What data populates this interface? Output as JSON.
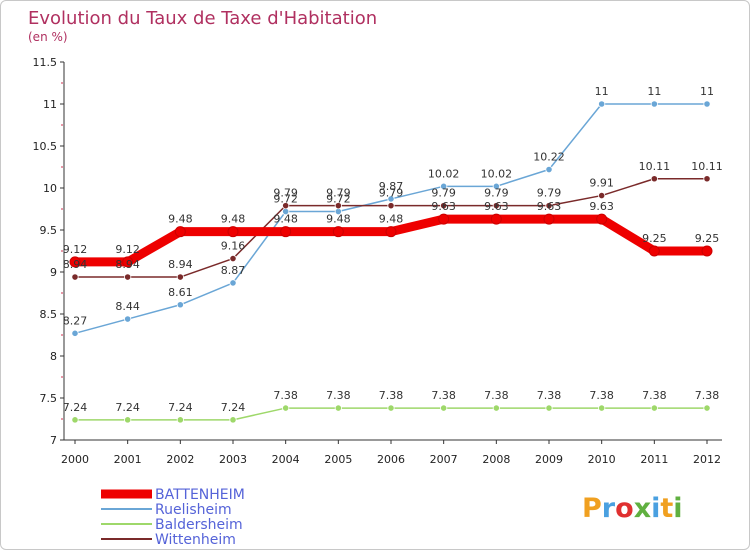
{
  "chart_data": {
    "type": "line",
    "title": "Evolution du Taux de Taxe d'Habitation",
    "subtitle": "(en %)",
    "x": [
      "2000",
      "2001",
      "2002",
      "2003",
      "2004",
      "2005",
      "2006",
      "2007",
      "2008",
      "2009",
      "2010",
      "2011",
      "2012"
    ],
    "ylim": [
      7,
      11.5
    ],
    "yticks": [
      "7",
      "7.5",
      "8",
      "8.5",
      "9",
      "9.5",
      "10",
      "10.5",
      "11",
      "11.5"
    ],
    "grid": false,
    "legend_position": "bottom-left",
    "series": [
      {
        "name": "BATTENHEIM",
        "color": "#ee0000",
        "values": [
          9.12,
          9.12,
          9.48,
          9.48,
          9.48,
          9.48,
          9.48,
          9.63,
          9.63,
          9.63,
          9.63,
          9.25,
          9.25
        ],
        "labels": [
          "9.12",
          "9.12",
          "9.48",
          "9.48",
          "9.48",
          "9.48",
          "9.48",
          "9.63",
          "9.63",
          "9.63",
          "9.63",
          "9.25",
          "9.25"
        ]
      },
      {
        "name": "Ruelisheim",
        "color": "#6aa6d6",
        "values": [
          8.27,
          8.44,
          8.61,
          8.87,
          9.72,
          9.72,
          9.87,
          10.02,
          10.02,
          10.22,
          11,
          11,
          11
        ],
        "labels": [
          "8.27",
          "8.44",
          "8.61",
          "8.87",
          "9.72",
          "9.72",
          "9.87",
          "10.02",
          "10.02",
          "10.22",
          "11",
          "11",
          "11"
        ]
      },
      {
        "name": "Baldersheim",
        "color": "#9ed86a",
        "values": [
          7.24,
          7.24,
          7.24,
          7.24,
          7.38,
          7.38,
          7.38,
          7.38,
          7.38,
          7.38,
          7.38,
          7.38,
          7.38
        ],
        "labels": [
          "7.24",
          "7.24",
          "7.24",
          "7.24",
          "7.38",
          "7.38",
          "7.38",
          "7.38",
          "7.38",
          "7.38",
          "7.38",
          "7.38",
          "7.38"
        ]
      },
      {
        "name": "Wittenheim",
        "color": "#7a2a2a",
        "values": [
          8.94,
          8.94,
          8.94,
          9.16,
          9.79,
          9.79,
          9.79,
          9.79,
          9.79,
          9.79,
          9.91,
          10.11,
          10.11
        ],
        "labels": [
          "8.94",
          "8.94",
          "8.94",
          "9.16",
          "9.79",
          "9.79",
          "9.79",
          "9.79",
          "9.79",
          "9.79",
          "9.91",
          "10.11",
          "10.11"
        ]
      }
    ]
  },
  "logo": {
    "text": "Proxiti",
    "colors": [
      "#f0a020",
      "#4aa0e0",
      "#e03030",
      "#60b040",
      "#4aa0e0",
      "#f0a020",
      "#60b040"
    ]
  }
}
